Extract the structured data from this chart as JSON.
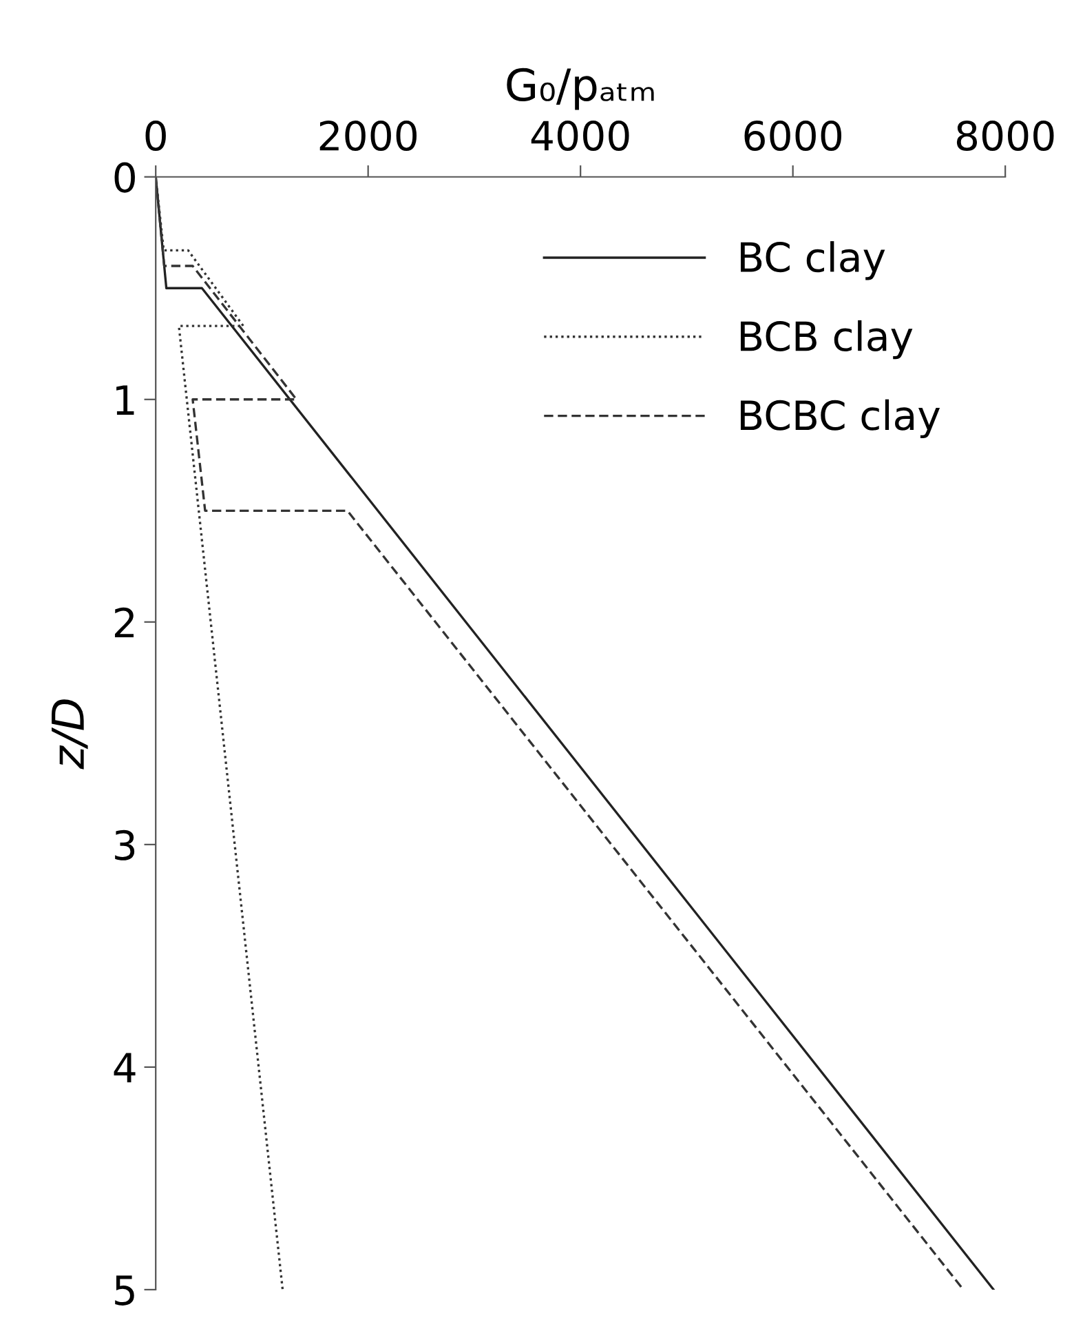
{
  "chart_data": {
    "type": "line",
    "xlabel": "G₀/pₐₜₘ",
    "ylabel": "z/D",
    "xlim": [
      0,
      8000
    ],
    "xticks": [
      0,
      2000,
      4000,
      6000,
      8000
    ],
    "ylim": [
      5,
      0
    ],
    "yticks": [
      0,
      1,
      2,
      3,
      4,
      5
    ],
    "grid": false,
    "legend": "top right",
    "series": [
      {
        "name": "BC clay",
        "color": "#222222",
        "line_style": "solid",
        "x": [
          0,
          100,
          435,
          7890
        ],
        "values": [
          0,
          0.5,
          0.5,
          5
        ]
      },
      {
        "name": "BCB clay",
        "color": "#333333",
        "line_style": "dotted",
        "x": [
          0,
          75,
          305,
          825,
          218,
          1195
        ],
        "values": [
          0,
          0.33,
          0.33,
          0.67,
          0.67,
          5
        ]
      },
      {
        "name": "BCBC clay",
        "color": "#333333",
        "line_style": "dashed",
        "x": [
          0,
          80,
          348,
          1325,
          348,
          465,
          1805,
          7605
        ],
        "values": [
          0,
          0.4,
          0.4,
          1.0,
          1.0,
          1.5,
          1.5,
          5
        ]
      }
    ]
  }
}
